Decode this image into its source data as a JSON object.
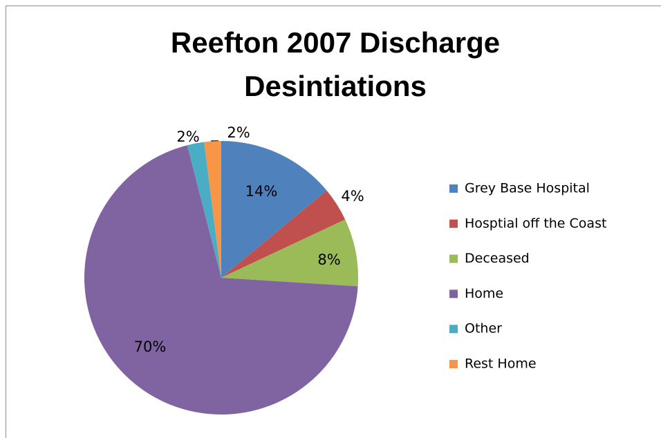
{
  "chart_data": {
    "type": "pie",
    "title": "Reefton 2007 Discharge Desintiations",
    "categories": [
      "Grey Base Hospital",
      "Hosptial off the Coast",
      "Deceased",
      "Home",
      "Other",
      "Rest Home"
    ],
    "values": [
      14,
      4,
      8,
      70,
      2,
      2
    ],
    "value_labels": [
      "14%",
      "4%",
      "8%",
      "70%",
      "2%",
      "2%"
    ],
    "colors": [
      "#4f81bd",
      "#c0504d",
      "#9bbb59",
      "#8064a2",
      "#4bacc6",
      "#f79646"
    ],
    "legend": "right"
  }
}
